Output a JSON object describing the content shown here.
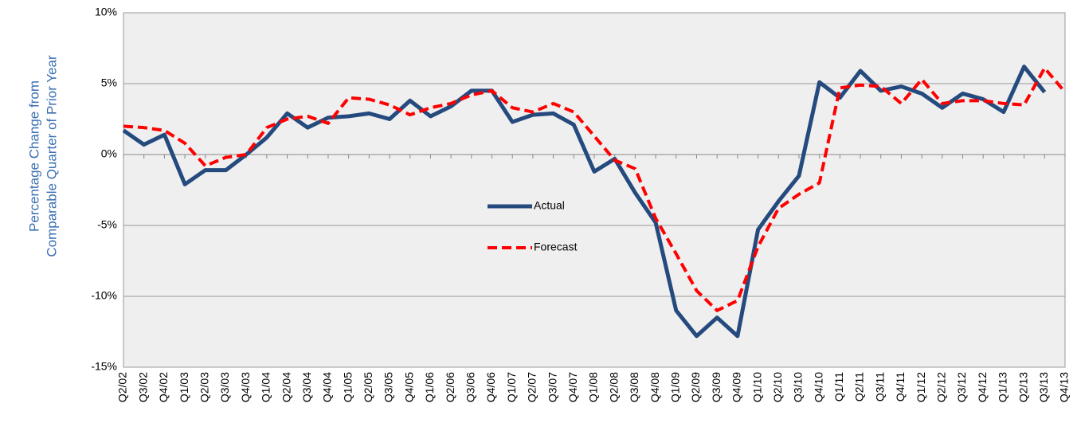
{
  "chart_data": {
    "type": "line",
    "y_label": [
      "Percentage Change from",
      "Comparable Quarter of Prior Year"
    ],
    "categories": [
      "Q2/02",
      "Q3/02",
      "Q4/02",
      "Q1/03",
      "Q2/03",
      "Q3/03",
      "Q4/03",
      "Q1/04",
      "Q2/04",
      "Q3/04",
      "Q4/04",
      "Q1/05",
      "Q2/05",
      "Q3/05",
      "Q4/05",
      "Q1/06",
      "Q2/06",
      "Q3/06",
      "Q4/06",
      "Q1/07",
      "Q2/07",
      "Q3/07",
      "Q4/07",
      "Q1/08",
      "Q2/08",
      "Q3/08",
      "Q4/08",
      "Q1/09",
      "Q2/09",
      "Q3/09",
      "Q4/09",
      "Q1/10",
      "Q2/10",
      "Q3/10",
      "Q4/10",
      "Q1/11",
      "Q2/11",
      "Q3/11",
      "Q4/11",
      "Q1/12",
      "Q2/12",
      "Q3/12",
      "Q4/12",
      "Q1/13",
      "Q2/13",
      "Q3/13",
      "Q4/13"
    ],
    "series": [
      {
        "name": "Actual",
        "color": "#254a7e",
        "dash": false,
        "values": [
          1.7,
          0.7,
          1.4,
          -2.1,
          -1.1,
          -1.1,
          0.0,
          1.2,
          2.9,
          1.9,
          2.6,
          2.7,
          2.9,
          2.5,
          3.8,
          2.7,
          3.4,
          4.5,
          4.5,
          2.3,
          2.8,
          2.9,
          2.1,
          -1.2,
          -0.3,
          -2.7,
          -4.8,
          -11.0,
          -12.8,
          -11.5,
          -12.8,
          -5.3,
          -3.3,
          -1.5,
          5.1,
          4.0,
          5.9,
          4.5,
          4.8,
          4.3,
          3.3,
          4.3,
          3.9,
          3.0,
          6.2,
          4.4,
          null
        ]
      },
      {
        "name": "Forecast",
        "color": "#ff0000",
        "dash": true,
        "values": [
          2.0,
          1.9,
          1.7,
          0.8,
          -0.8,
          -0.2,
          0.0,
          1.9,
          2.5,
          2.7,
          2.2,
          4.0,
          3.9,
          3.5,
          2.8,
          3.3,
          3.6,
          4.2,
          4.5,
          3.3,
          3.0,
          3.6,
          3.0,
          1.3,
          -0.4,
          -1.0,
          -4.5,
          -7.0,
          -9.6,
          -11.0,
          -10.3,
          -6.5,
          -3.8,
          -2.8,
          -2.0,
          4.7,
          4.9,
          4.8,
          3.6,
          5.3,
          3.6,
          3.8,
          3.8,
          3.6,
          3.5,
          6.1,
          4.4
        ]
      }
    ],
    "ylim": [
      -15,
      10
    ],
    "yticks": [
      {
        "value": -15,
        "label": "-15%"
      },
      {
        "value": -10,
        "label": "-10%"
      },
      {
        "value": -5,
        "label": "-5%"
      },
      {
        "value": 0,
        "label": "0%"
      },
      {
        "value": 5,
        "label": "5%"
      },
      {
        "value": 10,
        "label": "10%"
      }
    ],
    "grid": true,
    "legend": "center"
  }
}
